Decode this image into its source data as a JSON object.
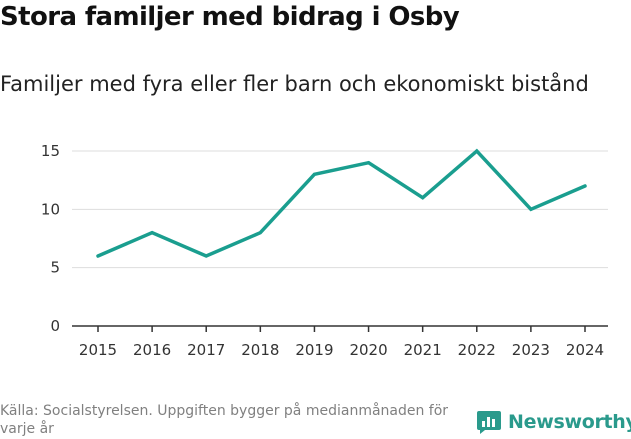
{
  "title": "Stora familjer med bidrag i Osby",
  "subtitle": "Familjer med fyra eller fler barn och ekonomiskt bistånd",
  "source": "Källa: Socialstyrelsen. Uppgiften bygger på medianmånaden för varje år",
  "brand": "Newsworthy",
  "colors": {
    "line": "#1a9e8f",
    "grid": "#dddddd",
    "axis": "#333333",
    "brand": "#2a9a8c"
  },
  "chart_data": {
    "type": "line",
    "title": "Stora familjer med bidrag i Osby",
    "subtitle": "Familjer med fyra eller fler barn och ekonomiskt bistånd",
    "xlabel": "",
    "ylabel": "",
    "categories": [
      "2015",
      "2016",
      "2017",
      "2018",
      "2019",
      "2020",
      "2021",
      "2022",
      "2023",
      "2024"
    ],
    "values": [
      6,
      8,
      6,
      8,
      13,
      14,
      11,
      15,
      10,
      12
    ],
    "ylim": [
      0,
      15
    ],
    "yticks": [
      "0",
      "5",
      "10",
      "15"
    ],
    "grid": true,
    "legend": "none"
  }
}
